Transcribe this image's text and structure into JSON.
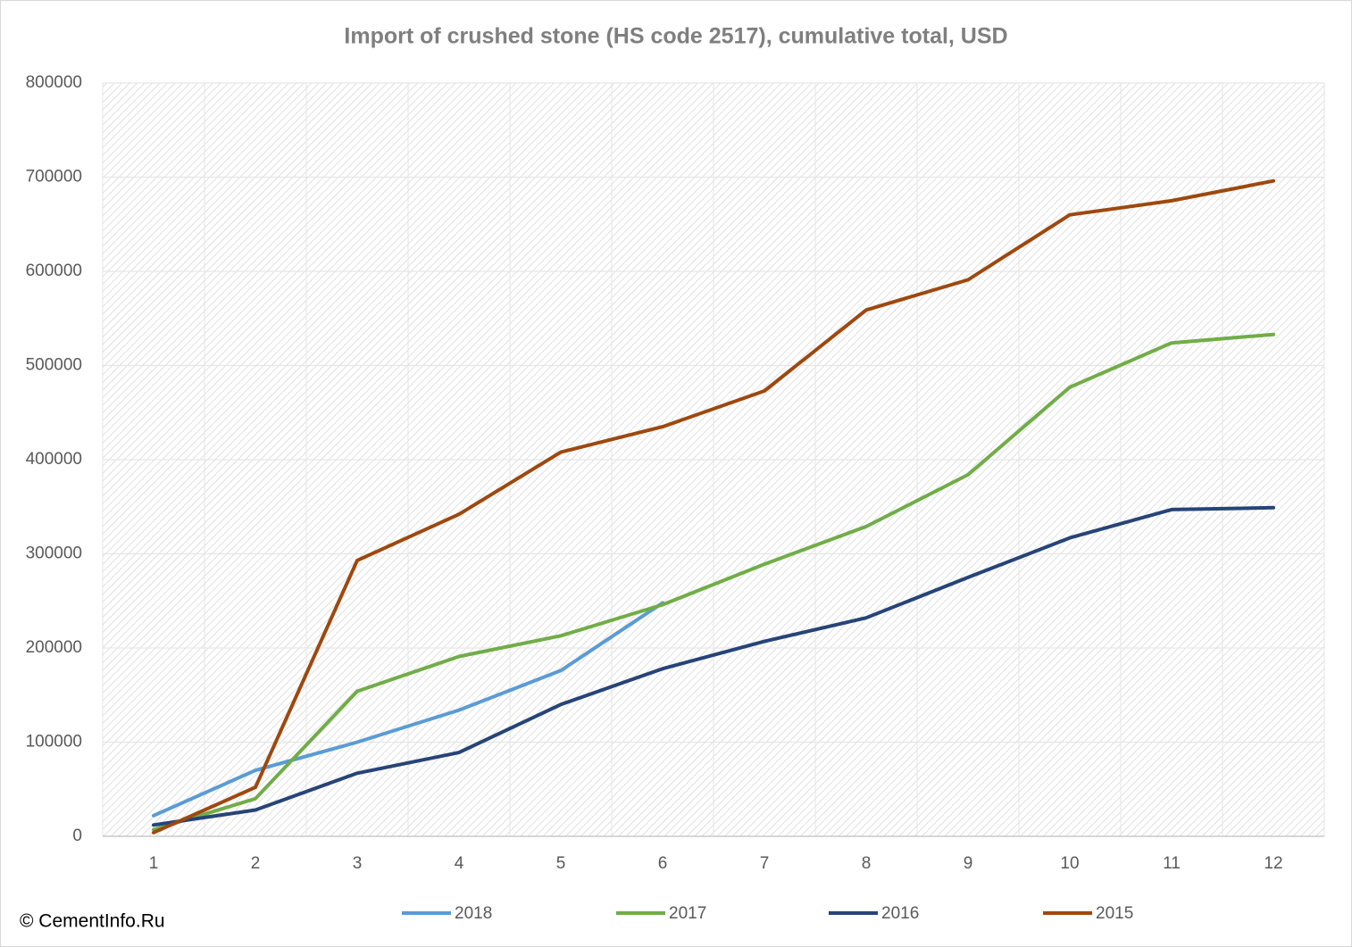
{
  "chart_data": {
    "type": "line",
    "title": "Import of crushed stone (HS code 2517), cumulative total, USD",
    "copyright": "© CementInfo.Ru",
    "categories": [
      1,
      2,
      3,
      4,
      5,
      6,
      7,
      8,
      9,
      10,
      11,
      12
    ],
    "series": [
      {
        "name": "2018",
        "color": "#5b9bd5",
        "values": [
          22000,
          70000,
          100000,
          134000,
          176000,
          248000,
          null,
          null,
          null,
          null,
          null,
          null
        ]
      },
      {
        "name": "2017",
        "color": "#70ad47",
        "values": [
          7000,
          40000,
          154000,
          191000,
          213000,
          246000,
          289000,
          329000,
          384000,
          477000,
          524000,
          533000
        ]
      },
      {
        "name": "2016",
        "color": "#264478",
        "values": [
          12000,
          28000,
          67000,
          89000,
          140000,
          178000,
          207000,
          232000,
          275000,
          317000,
          347000,
          349000
        ]
      },
      {
        "name": "2015",
        "color": "#9e480e",
        "values": [
          4000,
          52000,
          293000,
          342000,
          408000,
          435000,
          473000,
          559000,
          591000,
          660000,
          675000,
          696000
        ]
      }
    ],
    "ylim": [
      0,
      800000
    ],
    "yticks": [
      0,
      100000,
      200000,
      300000,
      400000,
      500000,
      600000,
      700000,
      800000
    ],
    "grid": true,
    "legend": "bottom"
  }
}
